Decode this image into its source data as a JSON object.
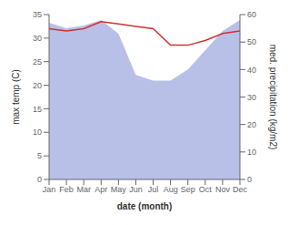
{
  "chart_data": {
    "type": "line",
    "xlabel": "date (month)",
    "ylabel": "max temp (C)",
    "y2label": "med. precipitation (kg/m2)",
    "categories": [
      "Jan",
      "Feb",
      "Mar",
      "Apr",
      "May",
      "Jun",
      "Jul",
      "Aug",
      "Sep",
      "Oct",
      "Nov",
      "Dec"
    ],
    "series": [
      {
        "type": "area",
        "axis": "y2",
        "color": "#b8c0e8",
        "values": [
          57.0,
          55.0,
          56.0,
          58.0,
          53.0,
          38.0,
          36.0,
          36.0,
          40.0,
          47.0,
          54.0,
          58.0
        ]
      },
      {
        "type": "line",
        "color": "#cc3333",
        "values": [
          32.0,
          31.5,
          32.0,
          33.5,
          33.0,
          32.5,
          32.0,
          28.5,
          28.5,
          29.5,
          31.0,
          31.5
        ]
      }
    ],
    "ylim": [
      0,
      35
    ],
    "yticks": [
      0,
      5,
      10,
      15,
      20,
      25,
      30,
      35
    ],
    "y2lim": [
      0,
      60
    ],
    "y2ticks": [
      0,
      10,
      20,
      30,
      40,
      50,
      60
    ],
    "grid": false
  }
}
